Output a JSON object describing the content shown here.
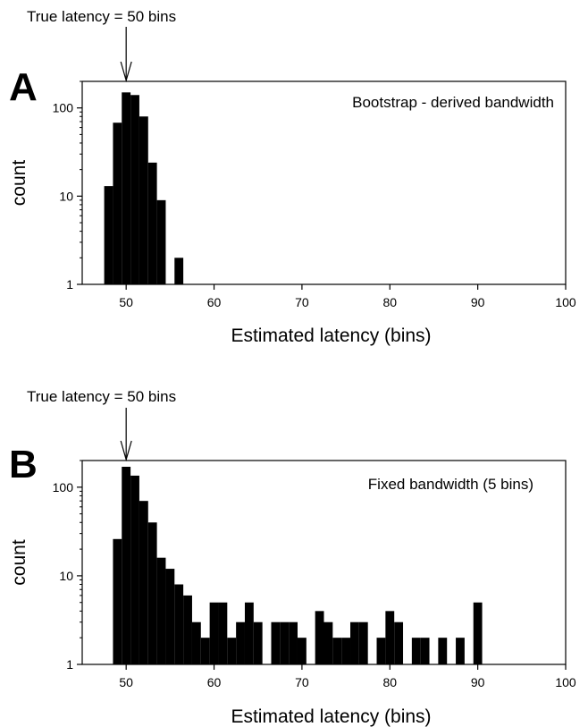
{
  "chart_data": [
    {
      "type": "bar",
      "panel": "A",
      "title": "Bootstrap - derived bandwidth",
      "annotation": "True latency = 50 bins",
      "annotation_x": 50,
      "xlabel": "Estimated latency (bins)",
      "ylabel": "count",
      "xlim": [
        45,
        100
      ],
      "ylim": [
        1,
        200
      ],
      "yscale": "log",
      "xticks": [
        50,
        60,
        70,
        80,
        90,
        100
      ],
      "yticks": [
        1,
        10,
        100
      ],
      "grid": false,
      "bar_color": "#000000",
      "x": [
        48,
        49,
        50,
        51,
        52,
        53,
        54,
        56
      ],
      "values": [
        13,
        68,
        150,
        140,
        80,
        24,
        9,
        2
      ]
    },
    {
      "type": "bar",
      "panel": "B",
      "title": "Fixed bandwidth (5 bins)",
      "annotation": "True latency = 50 bins",
      "annotation_x": 50,
      "xlabel": "Estimated latency (bins)",
      "ylabel": "count",
      "xlim": [
        45,
        100
      ],
      "ylim": [
        1,
        200
      ],
      "yscale": "log",
      "xticks": [
        50,
        60,
        70,
        80,
        90,
        100
      ],
      "yticks": [
        1,
        10,
        100
      ],
      "grid": false,
      "bar_color": "#000000",
      "x": [
        49,
        50,
        51,
        52,
        53,
        54,
        55,
        56,
        57,
        58,
        59,
        60,
        61,
        62,
        63,
        64,
        65,
        66,
        67,
        68,
        69,
        70,
        71,
        72,
        73,
        74,
        75,
        76,
        77,
        78,
        79,
        80,
        81,
        82,
        83,
        84,
        85,
        86,
        87,
        88,
        89,
        90
      ],
      "values": [
        26,
        170,
        135,
        70,
        40,
        16,
        12,
        8,
        6,
        3,
        2,
        5,
        5,
        2,
        3,
        5,
        3,
        1,
        3,
        3,
        3,
        2,
        0,
        4,
        3,
        2,
        2,
        3,
        3,
        0,
        2,
        4,
        3,
        1,
        2,
        2,
        1,
        2,
        1,
        2,
        1,
        5
      ]
    }
  ]
}
